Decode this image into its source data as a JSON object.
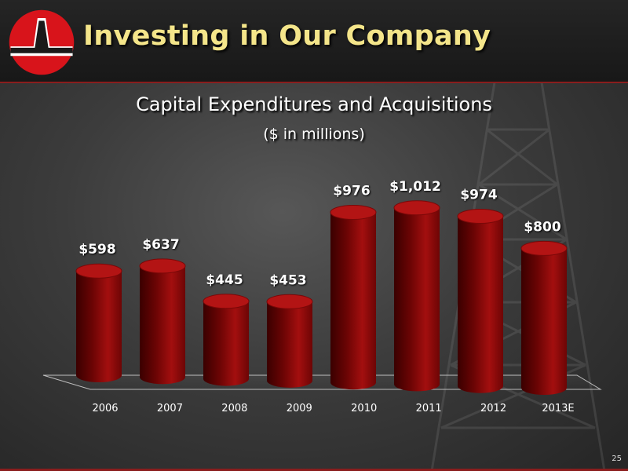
{
  "slide": {
    "title": "Investing in Our Company",
    "page_number": "25"
  },
  "colors": {
    "bar_front": "#a30f0f",
    "bar_dark": "#3a0000",
    "bar_top": "#b31414",
    "title_text": "#f4e58a",
    "accent_rule": "#8a1d1d"
  },
  "icons": {
    "logo": "company-logo-icon"
  },
  "chart_data": {
    "type": "bar",
    "title": "Capital Expenditures and Acquisitions",
    "subtitle": "($ in millions)",
    "categories": [
      "2006",
      "2007",
      "2008",
      "2009",
      "2010",
      "2011",
      "2012",
      "2013E"
    ],
    "values": [
      598,
      637,
      445,
      453,
      976,
      1012,
      974,
      800
    ],
    "data_labels": [
      "$598",
      "$637",
      "$445",
      "$453",
      "$976",
      "$1,012",
      "$974",
      "$800"
    ],
    "xlabel": "",
    "ylabel": "",
    "ylim": [
      0,
      1100
    ],
    "grid": false,
    "legend": "none",
    "style": "3d-cylinder"
  }
}
